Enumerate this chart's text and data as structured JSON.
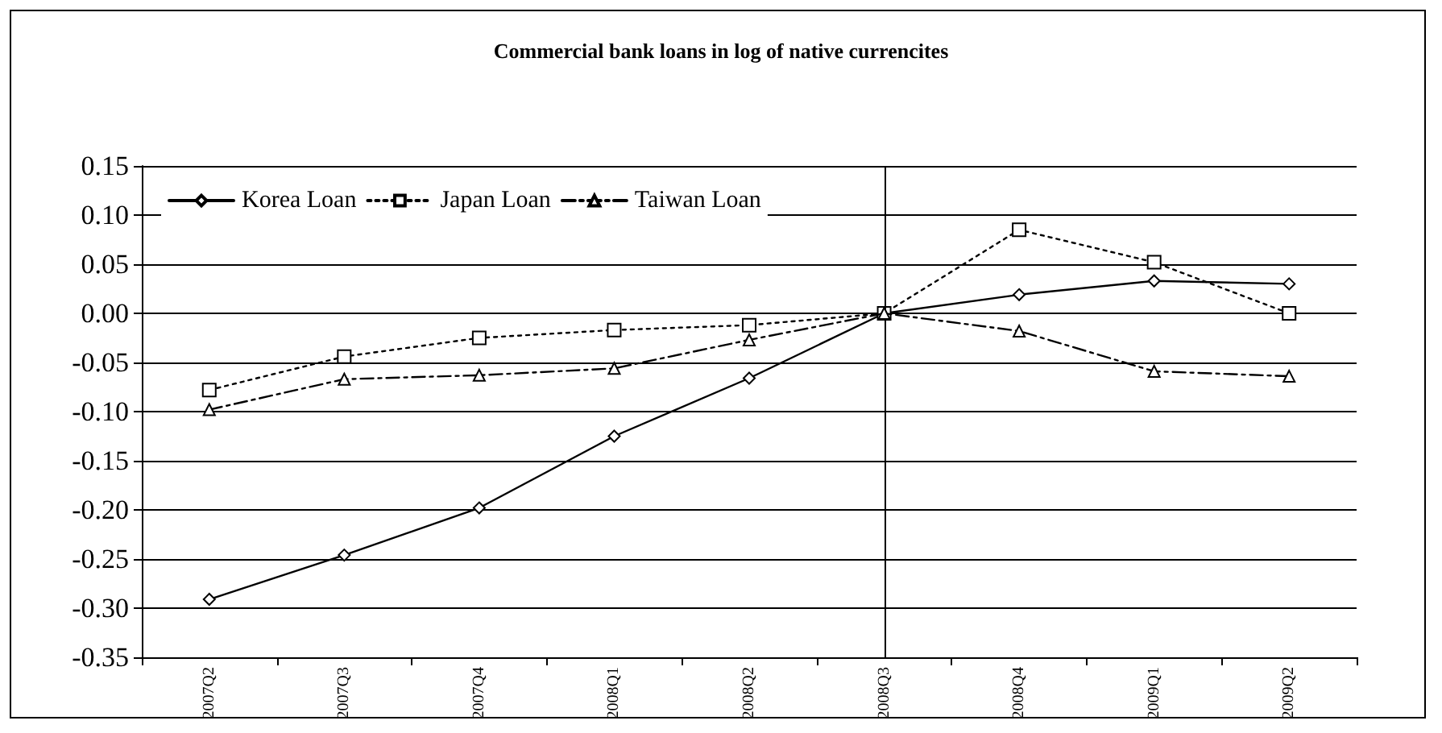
{
  "chart_data": {
    "type": "line",
    "title": "Commercial bank loans in log of native currencites",
    "categories": [
      "2007Q2",
      "2007Q3",
      "2007Q4",
      "2008Q1",
      "2008Q2",
      "2008Q3",
      "2008Q4",
      "2009Q1",
      "2009Q2"
    ],
    "series": [
      {
        "name": "Korea Loan",
        "color": "#000000",
        "marker": "diamond",
        "line_style": "solid",
        "values": [
          -0.291,
          -0.246,
          -0.198,
          -0.125,
          -0.066,
          0.0,
          0.019,
          0.033,
          0.03
        ]
      },
      {
        "name": "Japan Loan",
        "color": "#000000",
        "marker": "square",
        "line_style": "dotted",
        "values": [
          -0.078,
          -0.044,
          -0.025,
          -0.017,
          -0.012,
          0.0,
          0.085,
          0.052,
          0.0
        ]
      },
      {
        "name": "Taiwan Loan",
        "color": "#000000",
        "marker": "triangle",
        "line_style": "dashed",
        "values": [
          -0.098,
          -0.067,
          -0.063,
          -0.056,
          -0.027,
          0.0,
          -0.018,
          -0.059,
          -0.064
        ]
      }
    ],
    "ylim": [
      -0.35,
      0.15
    ],
    "yticks": [
      {
        "value": -0.35,
        "label": "-0.35"
      },
      {
        "value": -0.3,
        "label": "-0.30"
      },
      {
        "value": -0.25,
        "label": "-0.25"
      },
      {
        "value": -0.2,
        "label": "-0.20"
      },
      {
        "value": -0.15,
        "label": "-0.15"
      },
      {
        "value": -0.1,
        "label": "-0.10"
      },
      {
        "value": -0.05,
        "label": "-0.05"
      },
      {
        "value": 0,
        "label": "0.00"
      },
      {
        "value": 0.05,
        "label": "0.05"
      },
      {
        "value": 0.1,
        "label": "0.10"
      },
      {
        "value": 0.15,
        "label": "0.15"
      }
    ],
    "grid": "y",
    "legend": "top left",
    "ref_lines": [
      {
        "axis": "x",
        "value": "2008Q3",
        "color": "#000000"
      }
    ]
  }
}
